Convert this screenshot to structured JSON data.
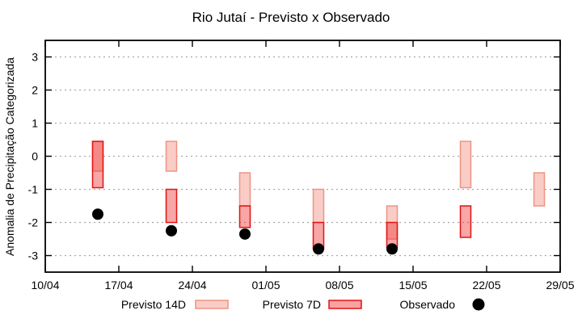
{
  "title": "Rio Jutaí - Previsto x Observado",
  "chart_data": {
    "type": "bar",
    "subtype": "range-candlestick-with-points",
    "title": "Rio Jutaí - Previsto x Observado",
    "xlabel": "",
    "ylabel": "Anomalia de Precipitação Categorizada",
    "ylim": [
      -3.5,
      3.5
    ],
    "y_ticks": [
      3,
      2,
      1,
      0,
      -1,
      -2,
      -3
    ],
    "grid": "dotted horizontal at each y tick",
    "x_domain_days": [
      0,
      49
    ],
    "x_ticks": [
      {
        "label": "10/04",
        "day": 0
      },
      {
        "label": "17/04",
        "day": 7
      },
      {
        "label": "24/04",
        "day": 14
      },
      {
        "label": "01/05",
        "day": 21
      },
      {
        "label": "08/05",
        "day": 28
      },
      {
        "label": "15/05",
        "day": 35
      },
      {
        "label": "22/05",
        "day": 42
      },
      {
        "label": "29/05",
        "day": 49
      }
    ],
    "series_names": [
      "Previsto 14D",
      "Previsto 7D",
      "Observado"
    ],
    "groups": [
      {
        "date": "15/04",
        "day": 5,
        "previsto_14d": [
          0.45,
          -0.45
        ],
        "previsto_7d": [
          0.45,
          -0.95
        ],
        "observado": -1.75
      },
      {
        "date": "22/04",
        "day": 12,
        "previsto_14d": [
          0.45,
          -0.45
        ],
        "previsto_7d": [
          -1.0,
          -2.0
        ],
        "observado": -2.25
      },
      {
        "date": "29/04",
        "day": 19,
        "previsto_14d": [
          -0.5,
          -1.5
        ],
        "previsto_7d": [
          -1.5,
          -2.15
        ],
        "observado": -2.35
      },
      {
        "date": "06/05",
        "day": 26,
        "previsto_14d": [
          -1.0,
          -2.0
        ],
        "previsto_7d": [
          -2.0,
          -2.8
        ],
        "observado": -2.8
      },
      {
        "date": "13/05",
        "day": 33,
        "previsto_14d": [
          -1.5,
          -2.5
        ],
        "previsto_7d": [
          -2.0,
          -2.75
        ],
        "observado": -2.8
      },
      {
        "date": "20/05",
        "day": 40,
        "previsto_14d": [
          0.45,
          -0.95
        ],
        "previsto_7d": [
          -1.5,
          -2.45
        ],
        "observado": null
      },
      {
        "date": "27/05",
        "day": 47,
        "previsto_14d": [
          -0.5,
          -1.5
        ],
        "previsto_7d": null,
        "observado": null
      }
    ],
    "legend": {
      "position": "below plot, centered row",
      "items": [
        {
          "label": "Previsto 14D",
          "swatch": "box",
          "fill": "#f9cdc6",
          "border": "#ef9383"
        },
        {
          "label": "Previsto 7D",
          "swatch": "box",
          "fill": "#f9a2a2",
          "border": "#e31313"
        },
        {
          "label": "Observado",
          "swatch": "dot",
          "fill": "#000000"
        }
      ]
    },
    "colors": {
      "previsto_14d_fill": "#f9cdc6",
      "previsto_14d_border": "#ef9383",
      "previsto_7d_fill_base": "#ee2a2a",
      "previsto_7d_fill_opacity": 0.42,
      "previsto_7d_fill_effective": "#f8a5a5",
      "previsto_7d_border": "#e31313",
      "overlap_fill_effective": "#f48884",
      "observado": "#000000",
      "grid": "#a8a8a8",
      "axis": "#000000"
    }
  }
}
